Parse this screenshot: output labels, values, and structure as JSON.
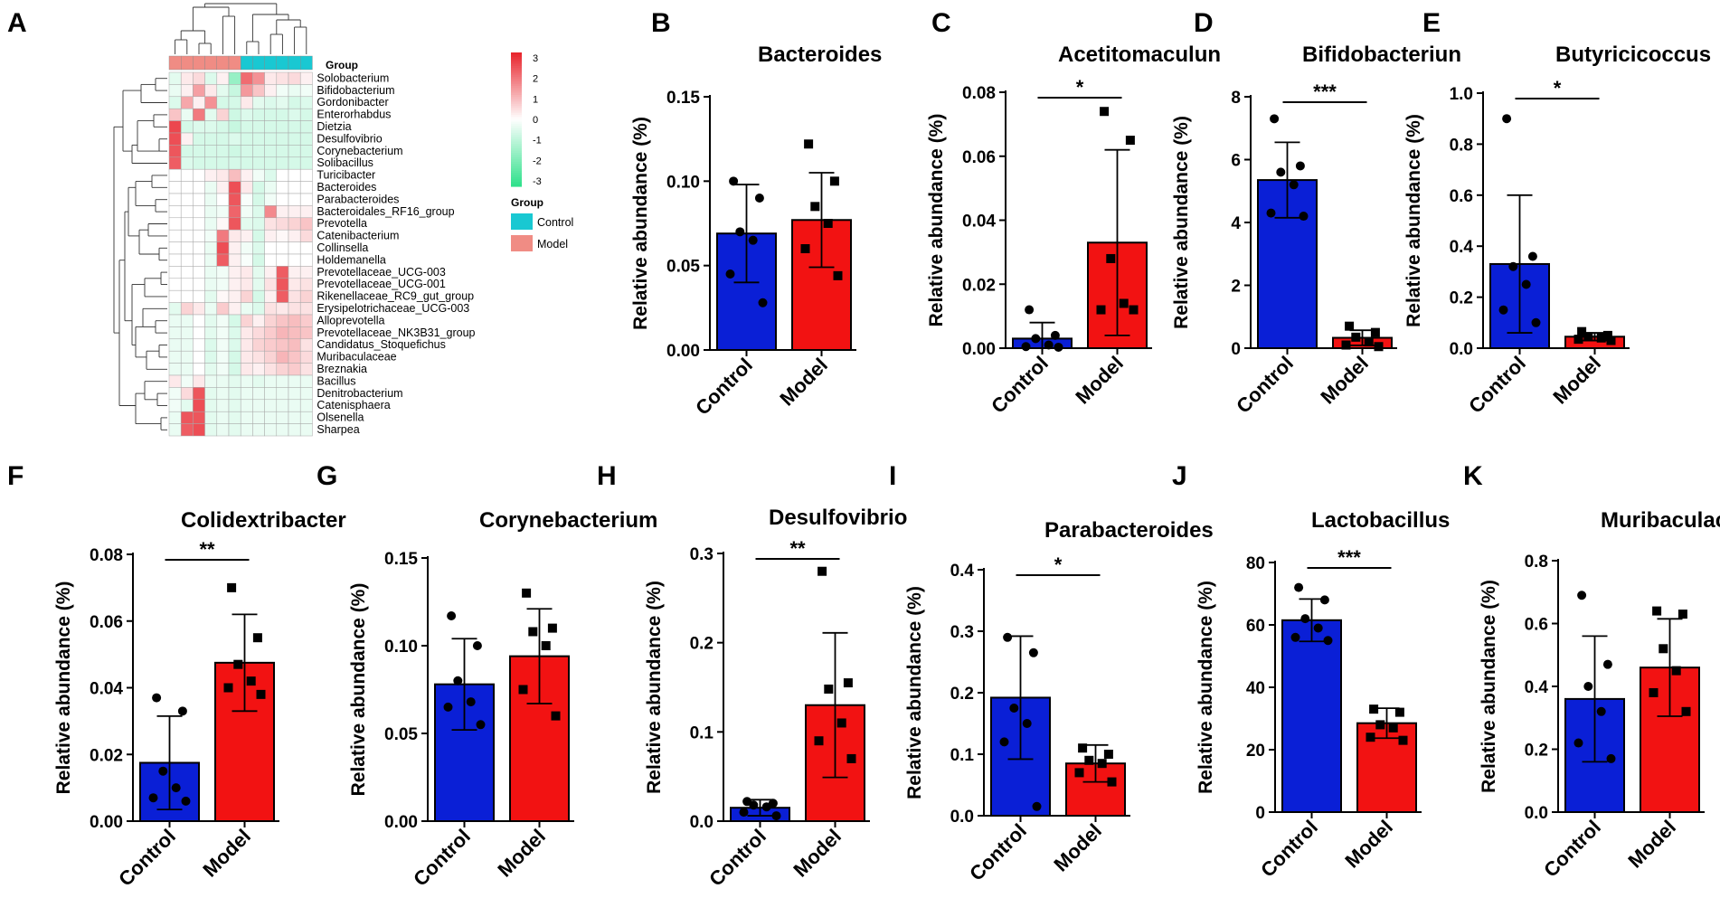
{
  "colors": {
    "control": "#0a1fd6",
    "model": "#f21212",
    "control_group": "#19c8d2",
    "model_group": "#f08c84",
    "heat_high": "#e8222a",
    "heat_mid": "#ffffff",
    "heat_low": "#2ee08a"
  },
  "heatmap": {
    "label": "A",
    "group_header": "Group",
    "legend_title": "Group",
    "legend_items": [
      "Control",
      "Model"
    ],
    "colorbar_ticks": [
      "3",
      "2",
      "1",
      "0",
      "-1",
      "-2",
      "-3"
    ],
    "columns": [
      "Model",
      "Model",
      "Model",
      "Model",
      "Model",
      "Model",
      "Control",
      "Control",
      "Control",
      "Control",
      "Control",
      "Control"
    ],
    "rows": [
      "Solobacterium",
      "Bifidobacterium",
      "Gordonibacter",
      "Enterorhabdus",
      "Dietzia",
      "Desulfovibrio",
      "Corynebacterium",
      "Solibacillus",
      "Turicibacter",
      "Bacteroides",
      "Parabacteroides",
      "Bacteroidales_RF16_group",
      "Prevotella",
      "Catenibacterium",
      "Collinsella",
      "Holdemanella",
      "Prevotellaceae_UCG-003",
      "Prevotellaceae_UCG-001",
      "Rikenellaceae_RC9_gut_group",
      "Erysipelotrichaceae_UCG-003",
      "Alloprevotella",
      "Prevotellaceae_NK3B31_group",
      "Candidatus_Stoquefichus",
      "Muribaculaceae",
      "Breznakia",
      "Bacillus",
      "Denitrobacterium",
      "Catenisphaera",
      "Olsenella",
      "Sharpea"
    ],
    "values": [
      [
        -0.4,
        0.3,
        0.5,
        -0.5,
        0.2,
        -1.5,
        2.0,
        1.5,
        0.3,
        0.4,
        0.5,
        0.2
      ],
      [
        -0.3,
        0.2,
        1.3,
        0.3,
        -0.4,
        -0.8,
        1.4,
        0.8,
        0.2,
        -0.2,
        -0.3,
        -0.2
      ],
      [
        -0.5,
        1.2,
        0.2,
        1.5,
        -0.6,
        -0.6,
        0.3,
        -0.4,
        -0.5,
        -0.4,
        -0.6,
        -0.5
      ],
      [
        0.8,
        -0.3,
        1.8,
        -0.4,
        0.6,
        -0.7,
        -0.5,
        -0.6,
        -0.6,
        -0.6,
        -0.5,
        -0.6
      ],
      [
        2.5,
        -0.6,
        -0.5,
        -0.5,
        -0.6,
        -0.8,
        -0.6,
        -0.6,
        -0.6,
        -0.6,
        -0.6,
        -0.6
      ],
      [
        2.4,
        0.2,
        -0.6,
        -0.6,
        -0.6,
        -0.5,
        -0.6,
        -0.6,
        -0.6,
        -0.6,
        -0.6,
        -0.6
      ],
      [
        2.3,
        -0.6,
        -0.6,
        -0.6,
        -0.6,
        -0.7,
        -0.6,
        -0.6,
        -0.6,
        -0.6,
        -0.6,
        -0.6
      ],
      [
        2.2,
        -0.5,
        -0.6,
        -0.6,
        -0.6,
        -0.6,
        -0.6,
        -0.6,
        -0.6,
        -0.6,
        -0.6,
        -0.6
      ],
      [
        0,
        0,
        0,
        0.2,
        0.3,
        0.9,
        0.2,
        -0.2,
        -0.5,
        0,
        0,
        0
      ],
      [
        0,
        0,
        0,
        -0.3,
        0.2,
        2.4,
        0.3,
        -0.6,
        -0.3,
        0,
        0,
        0
      ],
      [
        0,
        0,
        0,
        -0.3,
        0,
        2.3,
        -0.1,
        -0.6,
        -0.2,
        0,
        0,
        0
      ],
      [
        0,
        0,
        0,
        -0.3,
        -0.2,
        2.1,
        -0.2,
        -0.5,
        1.6,
        0.2,
        0.2,
        0.2
      ],
      [
        0,
        0,
        0,
        -0.3,
        0.1,
        2.3,
        -0.4,
        -0.5,
        0.4,
        0.5,
        0.6,
        0.8
      ],
      [
        0,
        0,
        0,
        -0.2,
        1.8,
        0.3,
        0.2,
        -0.6,
        0.2,
        0.1,
        0.2,
        0.5
      ],
      [
        0,
        0,
        0,
        -0.3,
        2.4,
        0.2,
        -0.2,
        -0.5,
        0,
        0,
        0,
        0
      ],
      [
        0,
        0,
        0,
        -0.3,
        2.2,
        0.2,
        -0.1,
        -0.6,
        0,
        0,
        0,
        0
      ],
      [
        0,
        0,
        0,
        -0.3,
        -0.2,
        0.2,
        0.3,
        -0.4,
        0.2,
        2.2,
        0.2,
        0.2
      ],
      [
        0,
        0,
        0,
        -0.3,
        -0.2,
        0.2,
        0.3,
        -0.4,
        0.4,
        2.3,
        0.3,
        0.4
      ],
      [
        0,
        0,
        0,
        -0.4,
        0.1,
        0.2,
        0.6,
        -0.6,
        0.2,
        2.2,
        0.4,
        0.6
      ],
      [
        -0.4,
        0.6,
        0.3,
        -0.3,
        0.7,
        0.2,
        -0.3,
        -0.5,
        0.4,
        0.3,
        0.4,
        0.4
      ],
      [
        -0.3,
        -0.3,
        0,
        -0.4,
        -0.2,
        -0.6,
        0.6,
        0.2,
        0.6,
        0.8,
        0.9,
        0.7
      ],
      [
        -0.3,
        -0.3,
        0,
        -0.4,
        -0.2,
        -0.5,
        0.3,
        0.5,
        0.7,
        1.0,
        0.9,
        0.8
      ],
      [
        -0.3,
        -0.3,
        0,
        -0.5,
        -0.2,
        -0.5,
        0.3,
        0.6,
        0.7,
        0.8,
        0.9,
        0.4
      ],
      [
        -0.3,
        -0.3,
        0,
        -0.5,
        -0.2,
        -0.6,
        0.3,
        0.4,
        0.6,
        1.0,
        0.8,
        0.5
      ],
      [
        -0.3,
        -0.3,
        0,
        -0.4,
        -0.2,
        -0.6,
        0.3,
        0.2,
        0.4,
        0.6,
        0.7,
        0.4
      ],
      [
        0.3,
        -0.2,
        0.3,
        -0.3,
        -0.3,
        -0.4,
        -0.3,
        -0.4,
        -0.3,
        -0.3,
        -0.3,
        -0.3
      ],
      [
        -0.2,
        0.5,
        2.3,
        -0.4,
        -0.3,
        -0.4,
        -0.3,
        -0.3,
        -0.3,
        -0.3,
        -0.3,
        -0.3
      ],
      [
        -0.2,
        -0.4,
        2.4,
        -0.4,
        -0.3,
        -0.4,
        -0.3,
        -0.3,
        -0.3,
        -0.3,
        -0.3,
        -0.3
      ],
      [
        -0.3,
        2.3,
        2.3,
        -0.4,
        -0.3,
        -0.4,
        -0.3,
        -0.3,
        -0.3,
        -0.3,
        -0.3,
        -0.3
      ],
      [
        -0.3,
        2.2,
        2.4,
        -0.4,
        -0.3,
        -0.4,
        -0.3,
        -0.3,
        -0.3,
        -0.3,
        -0.3,
        -0.3
      ]
    ]
  },
  "chart_data": [
    {
      "label": "B",
      "type": "bar",
      "title": "Bacteroides",
      "ylabel": "Relative abundance (%)",
      "categories": [
        "Control",
        "Model"
      ],
      "ylim": [
        0,
        0.15
      ],
      "yticks": [
        "0.00",
        "0.05",
        "0.10",
        "0.15"
      ],
      "means": [
        0.069,
        0.077
      ],
      "sd": [
        0.029,
        0.028
      ],
      "points": [
        [
          0.1,
          0.09,
          0.07,
          0.065,
          0.045,
          0.028
        ],
        [
          0.122,
          0.1,
          0.085,
          0.075,
          0.06,
          0.044
        ]
      ],
      "significance": ""
    },
    {
      "label": "C",
      "type": "bar",
      "title": "Acetitomaculun",
      "ylabel": "Relative abundance (%)",
      "categories": [
        "Control",
        "Model"
      ],
      "ylim": [
        0,
        0.08
      ],
      "yticks": [
        "0.00",
        "0.02",
        "0.04",
        "0.06",
        "0.08"
      ],
      "means": [
        0.003,
        0.033
      ],
      "sd": [
        0.005,
        0.029
      ],
      "points": [
        [
          0.012,
          0.004,
          0.003,
          0.001,
          0.0005,
          0.0003
        ],
        [
          0.074,
          0.065,
          0.028,
          0.014,
          0.012,
          0.012
        ]
      ],
      "significance": "*"
    },
    {
      "label": "D",
      "type": "bar",
      "title": "Bifidobacteriun",
      "ylabel": "Relative abundance (%)",
      "categories": [
        "Control",
        "Model"
      ],
      "ylim": [
        0,
        8
      ],
      "yticks": [
        "0",
        "2",
        "4",
        "6",
        "8"
      ],
      "means": [
        5.35,
        0.33
      ],
      "sd": [
        1.2,
        0.24
      ],
      "points": [
        [
          7.3,
          5.8,
          5.6,
          5.2,
          4.3,
          4.2
        ],
        [
          0.7,
          0.5,
          0.35,
          0.2,
          0.1,
          0.05
        ]
      ],
      "significance": "***"
    },
    {
      "label": "E",
      "type": "bar",
      "title": "Butyricicoccus",
      "ylabel": "Relative abundance (%)",
      "categories": [
        "Control",
        "Model"
      ],
      "ylim": [
        0,
        1.0
      ],
      "yticks": [
        "0.0",
        "0.2",
        "0.4",
        "0.6",
        "0.8",
        "1.0"
      ],
      "means": [
        0.33,
        0.045
      ],
      "sd": [
        0.27,
        0.015
      ],
      "points": [
        [
          0.9,
          0.36,
          0.32,
          0.25,
          0.15,
          0.1
        ],
        [
          0.065,
          0.05,
          0.045,
          0.04,
          0.035,
          0.03
        ]
      ],
      "significance": "*"
    },
    {
      "label": "F",
      "type": "bar",
      "title": "Colidextribacter",
      "ylabel": "Relative abundance (%)",
      "categories": [
        "Control",
        "Model"
      ],
      "ylim": [
        0,
        0.08
      ],
      "yticks": [
        "0.00",
        "0.02",
        "0.04",
        "0.06",
        "0.08"
      ],
      "means": [
        0.0175,
        0.0475
      ],
      "sd": [
        0.014,
        0.0145
      ],
      "points": [
        [
          0.037,
          0.033,
          0.015,
          0.01,
          0.007,
          0.006
        ],
        [
          0.07,
          0.055,
          0.047,
          0.042,
          0.04,
          0.038
        ]
      ],
      "significance": "**"
    },
    {
      "label": "G",
      "type": "bar",
      "title": "Corynebacterium",
      "ylabel": "Relative abundance (%)",
      "categories": [
        "Control",
        "Model"
      ],
      "ylim": [
        0,
        0.15
      ],
      "yticks": [
        "0.00",
        "0.05",
        "0.10",
        "0.15"
      ],
      "means": [
        0.078,
        0.094
      ],
      "sd": [
        0.026,
        0.027
      ],
      "points": [
        [
          0.117,
          0.1,
          0.08,
          0.068,
          0.065,
          0.055
        ],
        [
          0.13,
          0.11,
          0.108,
          0.1,
          0.075,
          0.06
        ]
      ],
      "significance": ""
    },
    {
      "label": "H",
      "type": "bar",
      "title": "Desulfovibrio",
      "ylabel": "Relative abundance (%)",
      "categories": [
        "Control",
        "Model"
      ],
      "ylim": [
        0,
        0.3
      ],
      "yticks": [
        "0.0",
        "0.1",
        "0.2",
        "0.3"
      ],
      "means": [
        0.015,
        0.13
      ],
      "sd": [
        0.009,
        0.081
      ],
      "points": [
        [
          0.022,
          0.02,
          0.018,
          0.016,
          0.01,
          0.006
        ],
        [
          0.28,
          0.155,
          0.148,
          0.11,
          0.09,
          0.07
        ]
      ],
      "significance": "**"
    },
    {
      "label": "I",
      "type": "bar",
      "title": "Parabacteroides",
      "ylabel": "Relative abundance (%)",
      "categories": [
        "Control",
        "Model"
      ],
      "ylim": [
        0,
        0.4
      ],
      "yticks": [
        "0.0",
        "0.1",
        "0.2",
        "0.3",
        "0.4"
      ],
      "means": [
        0.192,
        0.085
      ],
      "sd": [
        0.1,
        0.03
      ],
      "points": [
        [
          0.29,
          0.265,
          0.175,
          0.15,
          0.12,
          0.015
        ],
        [
          0.11,
          0.1,
          0.09,
          0.085,
          0.07,
          0.055
        ]
      ],
      "significance": "*"
    },
    {
      "label": "J",
      "type": "bar",
      "title": "Lactobacillus",
      "ylabel": "Relative abundance (%)",
      "categories": [
        "Control",
        "Model"
      ],
      "ylim": [
        0,
        80
      ],
      "yticks": [
        "0",
        "20",
        "40",
        "60",
        "80"
      ],
      "means": [
        61.5,
        28.5
      ],
      "sd": [
        6.8,
        4.8
      ],
      "points": [
        [
          72,
          68,
          62,
          59,
          56,
          55
        ],
        [
          33,
          32,
          28,
          27,
          24,
          23
        ]
      ],
      "significance": "***"
    },
    {
      "label": "K",
      "type": "bar",
      "title": "Muribaculaceae",
      "ylabel": "Relative abundance (%)",
      "categories": [
        "Control",
        "Model"
      ],
      "ylim": [
        0,
        0.8
      ],
      "yticks": [
        "0.0",
        "0.2",
        "0.4",
        "0.6",
        "0.8"
      ],
      "means": [
        0.36,
        0.46
      ],
      "sd": [
        0.2,
        0.155
      ],
      "points": [
        [
          0.69,
          0.47,
          0.4,
          0.32,
          0.22,
          0.17
        ],
        [
          0.64,
          0.63,
          0.52,
          0.45,
          0.38,
          0.32
        ]
      ],
      "significance": ""
    }
  ]
}
